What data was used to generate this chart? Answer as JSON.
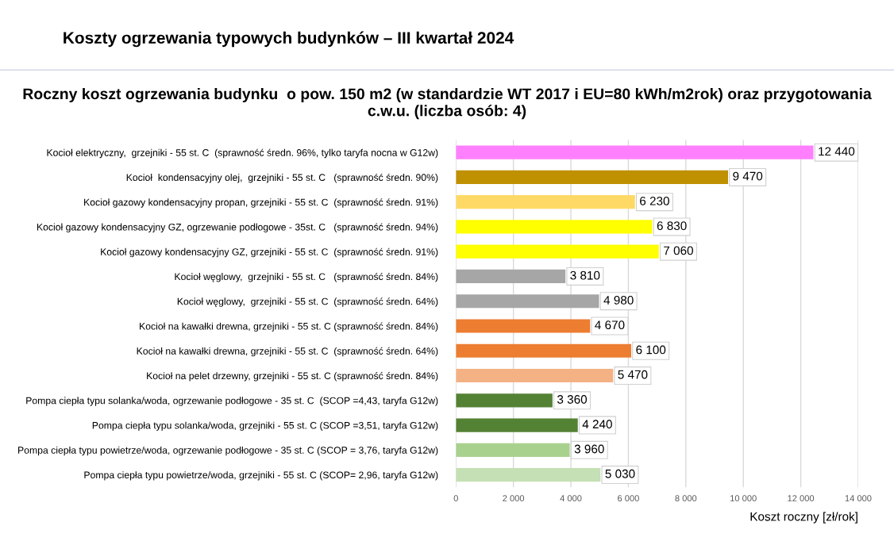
{
  "chart_data": {
    "type": "bar",
    "orientation": "horizontal",
    "title": "Koszty ogrzewania typowych budynków – III kwartał 2024",
    "subtitle": "Roczny koszt ogrzewania budynku  o pow. 150 m2 (w standardzie WT 2017 i EU=80 kWh/m2rok) oraz przygotowania c.w.u. (liczba osób: 4)",
    "xlabel": "Koszt roczny [zł/rok]",
    "categories": [
      "Kocioł elektryczny,  grzejniki - 55 st. C  (sprawność średn. 96%, tylko taryfa nocna w G12w)",
      "Kocioł  kondensacyjny olej,  grzejniki - 55 st. C   (sprawność średn. 90%)",
      "Kocioł gazowy kondensacyjny propan, grzejniki - 55 st. C  (sprawność średn. 91%)",
      "Kocioł gazowy kondensacyjny GZ, ogrzewanie podłogowe - 35st. C   (sprawność średn. 94%)",
      "Kocioł gazowy kondensacyjny GZ, grzejniki - 55 st. C  (sprawność średn. 91%)",
      "Kocioł węglowy,  grzejniki - 55 st. C   (sprawność średn. 84%)",
      "Kocioł węglowy,  grzejniki - 55 st. C  (sprawność średn. 64%)",
      "Kocioł na kawałki drewna, grzejniki - 55 st. C (sprawność średn. 84%)",
      "Kocioł na kawałki drewna, grzejniki - 55 st. C  (sprawność średn. 64%)",
      "Kocioł na pelet drzewny, grzejniki - 55 st. C (sprawność średn. 84%)",
      "Pompa ciepła typu solanka/woda, ogrzewanie podłogowe - 35 st. C  (SCOP =4,43, taryfa G12w)",
      "Pompa ciepła typu solanka/woda, grzejniki - 55 st. C (SCOP =3,51, taryfa G12w)",
      "Pompa ciepła typu powietrze/woda, ogrzewanie podłogowe - 35 st. C (SCOP = 3,76, taryfa G12w)",
      "Pompa ciepła typu powietrze/woda, grzejniki - 55 st. C (SCOP= 2,96, taryfa G12w)"
    ],
    "values": [
      12440,
      9470,
      6230,
      6830,
      7060,
      3810,
      4980,
      4670,
      6100,
      5470,
      3360,
      4240,
      3960,
      5030
    ],
    "value_labels": [
      "12 440",
      "9 470",
      "6 230",
      "6 830",
      "7 060",
      "3 810",
      "4 980",
      "4 670",
      "6 100",
      "5 470",
      "3 360",
      "4 240",
      "3 960",
      "5 030"
    ],
    "colors": [
      "#ff80ff",
      "#bf9000",
      "#ffd966",
      "#ffff00",
      "#ffff00",
      "#a6a6a6",
      "#a6a6a6",
      "#ed7d31",
      "#ed7d31",
      "#f4b183",
      "#548235",
      "#548235",
      "#a9d18e",
      "#c5e0b4"
    ],
    "xlim": [
      0,
      14000
    ],
    "xticks": [
      0,
      {
        "value": 2000,
        "label": "2 000"
      },
      {
        "value": 4000,
        "label": "4 000"
      },
      {
        "value": 6000,
        "label": "6 000"
      },
      {
        "value": 8000,
        "label": "8 000"
      },
      {
        "value": 10000,
        "label": "10 000"
      },
      {
        "value": 12000,
        "label": "12 000"
      },
      {
        "value": 14000,
        "label": "14 000"
      }
    ],
    "grid": "x",
    "legend": false
  }
}
